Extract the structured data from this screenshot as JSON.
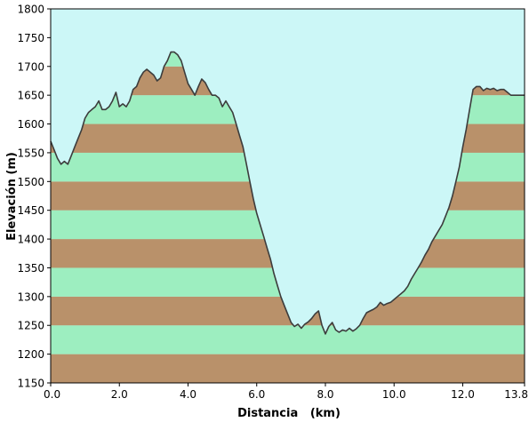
{
  "chart_data": {
    "type": "area",
    "title": "",
    "xlabel": "Distancia   (km)",
    "ylabel": "Elevación (m)",
    "xlim": [
      0,
      13.8
    ],
    "ylim": [
      1150,
      1800
    ],
    "x_ticks": [
      "0.0",
      "2.0",
      "4.0",
      "6.0",
      "8.0",
      "10.0",
      "12.0",
      "13.8"
    ],
    "y_ticks": [
      "1150",
      "1200",
      "1250",
      "1300",
      "1350",
      "1400",
      "1450",
      "1500",
      "1550",
      "1600",
      "1650",
      "1700",
      "1750",
      "1800"
    ],
    "grid": false,
    "band_interval_m": 50,
    "colors": {
      "sky": "#ccf7f7",
      "band_light": "#9deec0",
      "band_dark": "#b9916a",
      "profile_line": "#3c3c3c"
    },
    "series": [
      {
        "x": [
          0,
          0.1,
          0.2,
          0.3,
          0.4,
          0.5,
          0.6,
          0.7,
          0.8,
          0.9,
          1.0,
          1.1,
          1.2,
          1.3,
          1.4,
          1.5,
          1.6,
          1.7,
          1.8,
          1.9,
          2.0,
          2.1,
          2.2,
          2.3,
          2.4,
          2.5,
          2.6,
          2.7,
          2.8,
          2.9,
          3.0,
          3.1,
          3.2,
          3.3,
          3.4,
          3.5,
          3.6,
          3.7,
          3.8,
          3.9,
          4.0,
          4.1,
          4.2,
          4.3,
          4.4,
          4.5,
          4.6,
          4.7,
          4.8,
          4.9,
          5.0,
          5.1,
          5.2,
          5.3,
          5.4,
          5.5,
          5.6,
          5.7,
          5.8,
          5.9,
          6.0,
          6.1,
          6.2,
          6.3,
          6.4,
          6.5,
          6.6,
          6.7,
          6.8,
          6.9,
          7.0,
          7.1,
          7.2,
          7.3,
          7.4,
          7.5,
          7.6,
          7.7,
          7.8,
          7.9,
          8.0,
          8.1,
          8.2,
          8.3,
          8.4,
          8.5,
          8.6,
          8.7,
          8.8,
          8.9,
          9.0,
          9.1,
          9.2,
          9.3,
          9.4,
          9.5,
          9.6,
          9.7,
          9.8,
          9.9,
          10.0,
          10.1,
          10.2,
          10.3,
          10.4,
          10.5,
          10.6,
          10.7,
          10.8,
          10.9,
          11.0,
          11.1,
          11.2,
          11.3,
          11.4,
          11.5,
          11.6,
          11.7,
          11.8,
          11.9,
          12.0,
          12.1,
          12.2,
          12.3,
          12.4,
          12.5,
          12.6,
          12.7,
          12.8,
          12.9,
          13.0,
          13.1,
          13.2,
          13.3,
          13.4,
          13.5,
          13.6,
          13.7,
          13.8
        ],
        "y": [
          1570,
          1555,
          1540,
          1530,
          1535,
          1530,
          1545,
          1560,
          1575,
          1590,
          1610,
          1620,
          1625,
          1630,
          1640,
          1625,
          1625,
          1630,
          1640,
          1655,
          1630,
          1635,
          1630,
          1640,
          1660,
          1665,
          1680,
          1690,
          1695,
          1690,
          1685,
          1675,
          1680,
          1700,
          1710,
          1725,
          1725,
          1720,
          1710,
          1690,
          1670,
          1660,
          1650,
          1665,
          1678,
          1672,
          1660,
          1650,
          1650,
          1645,
          1630,
          1640,
          1630,
          1620,
          1600,
          1580,
          1560,
          1530,
          1500,
          1470,
          1445,
          1425,
          1405,
          1385,
          1365,
          1340,
          1320,
          1300,
          1285,
          1270,
          1255,
          1248,
          1252,
          1245,
          1252,
          1256,
          1262,
          1270,
          1275,
          1250,
          1235,
          1248,
          1255,
          1242,
          1238,
          1242,
          1240,
          1245,
          1240,
          1244,
          1250,
          1262,
          1272,
          1275,
          1278,
          1282,
          1290,
          1285,
          1288,
          1290,
          1295,
          1300,
          1305,
          1310,
          1318,
          1330,
          1340,
          1350,
          1360,
          1372,
          1382,
          1395,
          1405,
          1415,
          1425,
          1440,
          1455,
          1475,
          1500,
          1525,
          1560,
          1590,
          1625,
          1660,
          1665,
          1665,
          1658,
          1662,
          1660,
          1662,
          1658,
          1660,
          1660,
          1655,
          1650,
          1650,
          1650,
          1650,
          1650
        ]
      }
    ]
  }
}
